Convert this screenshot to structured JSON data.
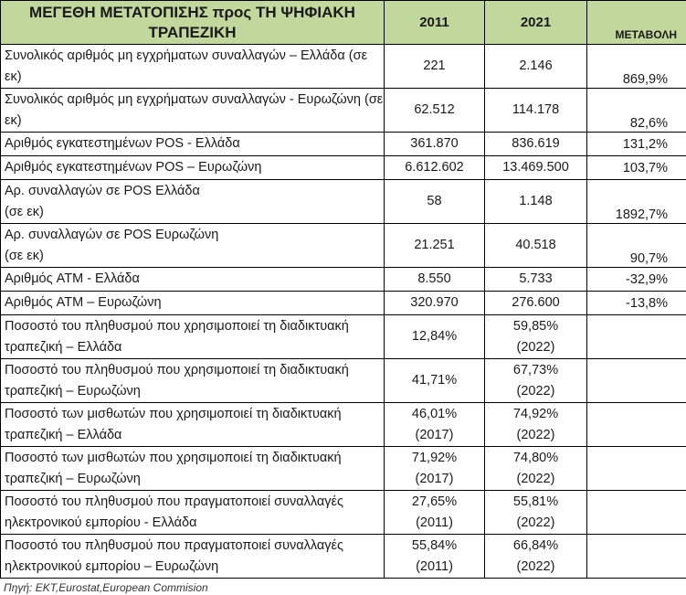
{
  "header": {
    "title": "ΜΕΓΕΘΗ ΜΕΤΑΤΟΠΙΣΗΣ προς ΤΗ ΨΗΦΙΑΚΗ ΤΡΑΠΕΖΙΚΗ",
    "col_2011": "2011",
    "col_2021": "2021",
    "col_change": "ΜΕΤΑΒΟΛΗ"
  },
  "rows": [
    {
      "label": "Συνολικός αριθμός μη εγχρήματων  συναλλαγών – Ελλάδα (σε εκ)",
      "v2011": "221",
      "v2021": "2.146",
      "change": "869,9%"
    },
    {
      "label": "Συνολικός αριθμός μη εγχρήματων συναλλαγών  - Ευρωζώνη (σε εκ)",
      "v2011": "62.512",
      "v2021": "114.178",
      "change": "82,6%"
    },
    {
      "label": "Αριθμός εγκατεστημένων POS - Ελλάδα",
      "v2011": "361.870",
      "v2021": "836.619",
      "change": "131,2%"
    },
    {
      "label": "Αριθμός εγκατεστημένων POS – Ευρωζώνη",
      "v2011": "6.612.602",
      "v2021": "13.469.500",
      "change": "103,7%"
    },
    {
      "label": "Αρ. συναλλαγών σε POS Ελλάδα\n(σε εκ)",
      "v2011": "58",
      "v2021": "1.148",
      "change": "1892,7%"
    },
    {
      "label": "Αρ. συναλλαγών σε POS Ευρωζώνη\n(σε εκ)",
      "v2011": "21.251",
      "v2021": "40.518",
      "change": "90,7%"
    },
    {
      "label": "Αριθμός ATM - Ελλάδα",
      "v2011": "8.550",
      "v2021": "5.733",
      "change": "-32,9%"
    },
    {
      "label": "Αριθμός ATM – Ευρωζώνη",
      "v2011": "320.970",
      "v2021": "276.600",
      "change": "-13,8%"
    },
    {
      "label": "Ποσοστό του πληθυσμού που χρησιμοποιεί τη διαδικτυακή τραπεζική – Ελλάδα",
      "v2011": "12,84%",
      "v2021": "59,85%\n(2022)",
      "change": ""
    },
    {
      "label": "Ποσοστό  του πληθυσμού που χρησιμοποιεί τη διαδικτυακή τραπεζική – Ευρωζώνη",
      "v2011": "41,71%",
      "v2021": "67,73%\n(2022)",
      "change": ""
    },
    {
      "label": "Ποσοστό των μισθωτών που χρησιμοποιεί τη διαδικτυακή τραπεζική – Ελλάδα",
      "v2011": "46,01%\n(2017)",
      "v2021": "74,92%\n(2022)",
      "change": ""
    },
    {
      "label": "Ποσοστό των μισθωτών που χρησιμοποιεί τη διαδικτυακή τραπεζική – Ευρωζώνη",
      "v2011": "71,92%\n(2017)",
      "v2021": "74,80%\n(2022)",
      "change": ""
    },
    {
      "label": "Ποσοστό του πληθυσμού που πραγματοποιεί συναλλαγές ηλεκτρονικού εμπορίου - Ελλάδα",
      "v2011": "27,65%\n(2011)",
      "v2021": "55,81%\n(2022)",
      "change": ""
    },
    {
      "label": "Ποσοστό του πληθυσμού που πραγματοποιεί συναλλαγές ηλεκτρονικού εμπορίου – Ευρωζώνη",
      "v2011": "55,84%\n(2011)",
      "v2021": "66,84%\n(2022)",
      "change": ""
    }
  ],
  "source": "Πηγή: ΕΚΤ,Eurostat,European Commision"
}
